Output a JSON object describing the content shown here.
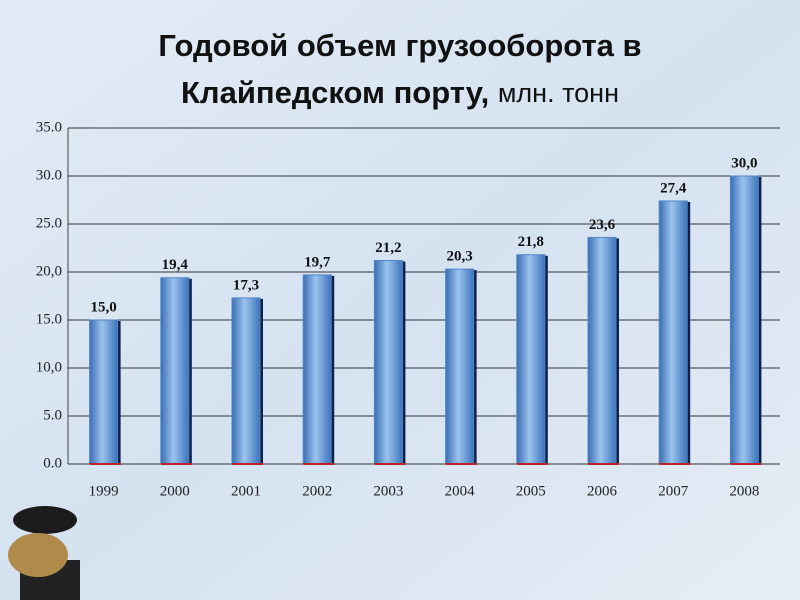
{
  "chart_data": {
    "type": "bar",
    "title": [
      "Годовой объем грузооборота в",
      "Клайпедском порту,"
    ],
    "unit": "млн. тонн",
    "categories": [
      "1999",
      "2000",
      "2001",
      "2002",
      "2003",
      "2004",
      "2005",
      "2006",
      "2007",
      "2008"
    ],
    "values": [
      15.0,
      19.4,
      17.3,
      19.7,
      21.2,
      20.3,
      21.8,
      23.6,
      27.4,
      30.0
    ],
    "value_labels": [
      "15,0",
      "19,4",
      "17,3",
      "19,7",
      "21,2",
      "20,3",
      "21,8",
      "23,6",
      "27,4",
      "30,0"
    ],
    "color": "#4f86c6",
    "ylim": [
      0,
      35
    ],
    "yticks": [
      {
        "value": 0,
        "label": "0.0"
      },
      {
        "value": 5,
        "label": "5.0"
      },
      {
        "value": 10,
        "label": "10,0"
      },
      {
        "value": 15,
        "label": "15.0"
      },
      {
        "value": 20,
        "label": "20,0"
      },
      {
        "value": 25,
        "label": "25.0"
      },
      {
        "value": 30,
        "label": "30.0"
      },
      {
        "value": 35,
        "label": "35.0"
      }
    ],
    "grid": true
  }
}
